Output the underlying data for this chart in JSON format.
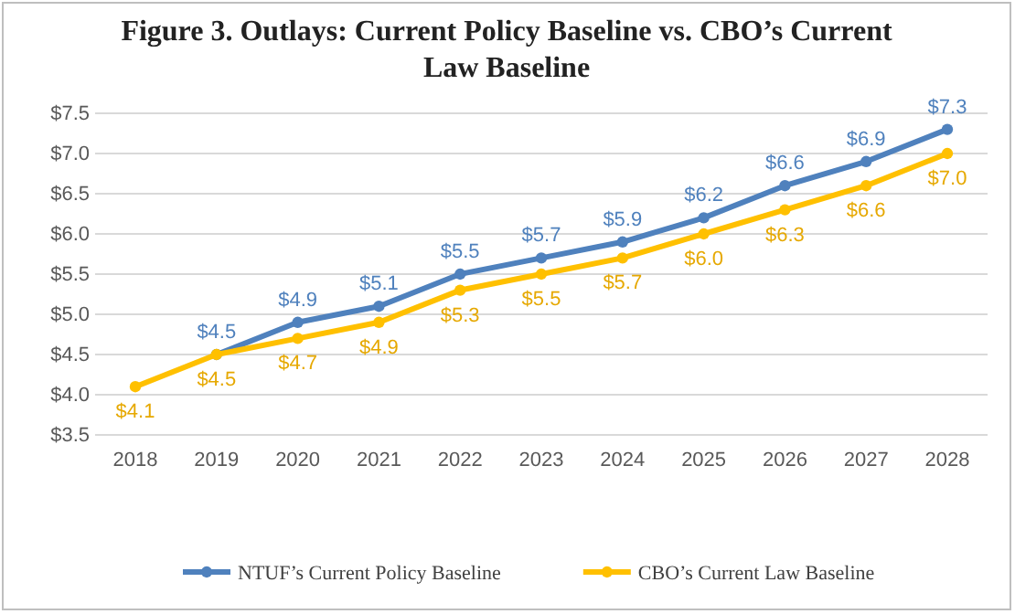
{
  "chart_data": {
    "type": "line",
    "title": "Figure 3. Outlays: Current Policy Baseline vs. CBO’s Current Law Baseline",
    "categories": [
      "2018",
      "2019",
      "2020",
      "2021",
      "2022",
      "2023",
      "2024",
      "2025",
      "2026",
      "2027",
      "2028"
    ],
    "series": [
      {
        "name": "NTUF’s Current Policy Baseline",
        "color": "#4f81bd",
        "values": [
          null,
          4.5,
          4.9,
          5.1,
          5.5,
          5.7,
          5.9,
          6.2,
          6.6,
          6.9,
          7.3
        ],
        "value_labels": [
          null,
          "$4.5",
          "$4.9",
          "$5.1",
          "$5.5",
          "$5.7",
          "$5.9",
          "$6.2",
          "$6.6",
          "$6.9",
          "$7.3"
        ]
      },
      {
        "name": "CBO’s Current Law Baseline",
        "color": "#ffc000",
        "values": [
          4.1,
          4.5,
          4.7,
          4.9,
          5.3,
          5.5,
          5.7,
          6.0,
          6.3,
          6.6,
          7.0
        ],
        "value_labels": [
          "$4.1",
          "$4.5",
          "$4.7",
          "$4.9",
          "$5.3",
          "$5.5",
          "$5.7",
          "$6.0",
          "$6.3",
          "$6.6",
          "$7.0"
        ]
      }
    ],
    "ylim": [
      3.5,
      7.5
    ],
    "yticks": [
      {
        "value": 3.5,
        "label": "$3.5"
      },
      {
        "value": 4,
        "label": "$4.0"
      },
      {
        "value": 4.5,
        "label": "$4.5"
      },
      {
        "value": 5,
        "label": "$5.0"
      },
      {
        "value": 5.5,
        "label": "$5.5"
      },
      {
        "value": 6,
        "label": "$6.0"
      },
      {
        "value": 6.5,
        "label": "$6.5"
      },
      {
        "value": 7,
        "label": "$7.0"
      },
      {
        "value": 7.5,
        "label": "$7.5"
      }
    ],
    "grid": "y",
    "legend": "bottom",
    "marker": "circle",
    "line_style": "solid"
  }
}
